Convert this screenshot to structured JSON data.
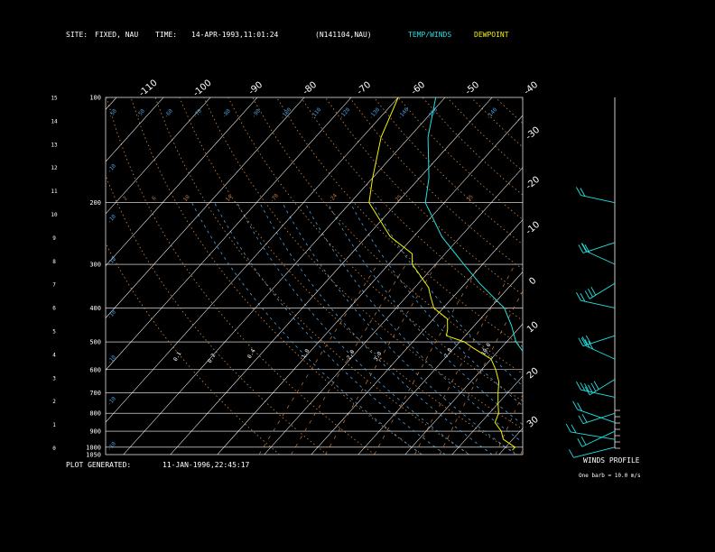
{
  "header": {
    "site_label": "SITE:",
    "site_value": "FIXED, NAU",
    "time_label": "TIME:",
    "time_value": "14-APR-1993,11:01:24",
    "station_id": "(N141104,NAU)",
    "legend_temp": "TEMP/WINDS",
    "legend_dew": "DEWPOINT"
  },
  "footer": {
    "plot_label": "PLOT GENERATED:",
    "plot_value": "11-JAN-1996,22:45:17"
  },
  "winds": {
    "title": "WINDS PROFILE",
    "note": "One barb = 10.0 m/s"
  },
  "colors": {
    "background": "#000000",
    "temp": "#22e0e0",
    "dewpoint": "#f2f200",
    "grid": "#ffffff",
    "mixing_ratio": "#c97a3a",
    "dry_adiabat": "#d8873f",
    "moist_adiabat": "#4aa0e0"
  },
  "chart_data": {
    "type": "line",
    "title": "",
    "y_axis": "pressure (mb), log scale",
    "pressure_levels": [
      "100",
      "200",
      "300",
      "400",
      "500",
      "600",
      "700",
      "800",
      "900",
      "1000",
      "1050"
    ],
    "height_km_ticks": [
      "0",
      "1",
      "2",
      "3",
      "4",
      "5",
      "6",
      "7",
      "8",
      "9",
      "10",
      "11",
      "12",
      "13",
      "14",
      "15"
    ],
    "skew_temp_ticks_top": [
      "-110",
      "-100",
      "-90",
      "-80",
      "-70",
      "-60",
      "-50",
      "-40"
    ],
    "skew_temp_ticks_right": [
      "-30",
      "-20",
      "-10",
      "0",
      "10",
      "20",
      "30"
    ],
    "dry_adiabat_labels_top": [
      "-50",
      "-50",
      "-60",
      "-70",
      "-80",
      "-90",
      "-100",
      "-110",
      "-120",
      "-130",
      "-140",
      "-150",
      "-140"
    ],
    "mixing_ratio_labels_upper": [
      "2",
      "6",
      "10",
      "14",
      "-70",
      "-24",
      "25",
      "35"
    ],
    "mixing_ratio_labels_lower": [
      "0.1",
      "0.2",
      "0.4",
      "1.0",
      "2.0",
      "3.0",
      "7.0",
      "10.0"
    ],
    "moist_adiabat_labels_left": [
      "-10",
      "-10",
      "-10",
      "-10",
      "-10",
      "-10",
      "-10",
      "-10",
      "30"
    ],
    "series": [
      {
        "name": "TEMP/WINDS",
        "points": [
          [
            100,
            -72
          ],
          [
            130,
            -66
          ],
          [
            170,
            -58
          ],
          [
            200,
            -54
          ],
          [
            250,
            -44
          ],
          [
            300,
            -34
          ],
          [
            340,
            -27
          ],
          [
            400,
            -17
          ],
          [
            450,
            -12
          ],
          [
            500,
            -8
          ],
          [
            550,
            -3
          ],
          [
            600,
            0
          ],
          [
            650,
            3
          ],
          [
            700,
            6
          ],
          [
            750,
            8
          ],
          [
            800,
            10
          ],
          [
            850,
            12
          ],
          [
            900,
            14
          ],
          [
            950,
            17
          ],
          [
            1000,
            20
          ],
          [
            1020,
            21
          ]
        ]
      },
      {
        "name": "DEWPOINT",
        "points": [
          [
            100,
            -80
          ],
          [
            130,
            -76
          ],
          [
            170,
            -70
          ],
          [
            200,
            -66
          ],
          [
            250,
            -55
          ],
          [
            280,
            -47
          ],
          [
            300,
            -45
          ],
          [
            330,
            -40
          ],
          [
            350,
            -37
          ],
          [
            370,
            -35
          ],
          [
            400,
            -32
          ],
          [
            430,
            -27
          ],
          [
            460,
            -25
          ],
          [
            480,
            -24
          ],
          [
            500,
            -19
          ],
          [
            520,
            -16
          ],
          [
            560,
            -10
          ],
          [
            600,
            -7
          ],
          [
            650,
            -4
          ],
          [
            700,
            -2
          ],
          [
            750,
            0
          ],
          [
            800,
            2
          ],
          [
            850,
            3
          ],
          [
            900,
            6
          ],
          [
            950,
            8
          ],
          [
            1000,
            12
          ],
          [
            1020,
            12
          ]
        ]
      }
    ],
    "winds_profile": [
      {
        "p": 200,
        "speed": 20
      },
      {
        "p": 260,
        "speed": 15
      },
      {
        "p": 300,
        "speed": 15
      },
      {
        "p": 340,
        "speed": 25
      },
      {
        "p": 400,
        "speed": 20
      },
      {
        "p": 480,
        "speed": 30
      },
      {
        "p": 560,
        "speed": 30
      },
      {
        "p": 640,
        "speed": 35
      },
      {
        "p": 720,
        "speed": 25
      },
      {
        "p": 800,
        "speed": 15
      },
      {
        "p": 850,
        "speed": 20
      },
      {
        "p": 900,
        "speed": 20
      },
      {
        "p": 950,
        "speed": 15
      },
      {
        "p": 1000,
        "speed": 10
      }
    ],
    "grid": true
  }
}
